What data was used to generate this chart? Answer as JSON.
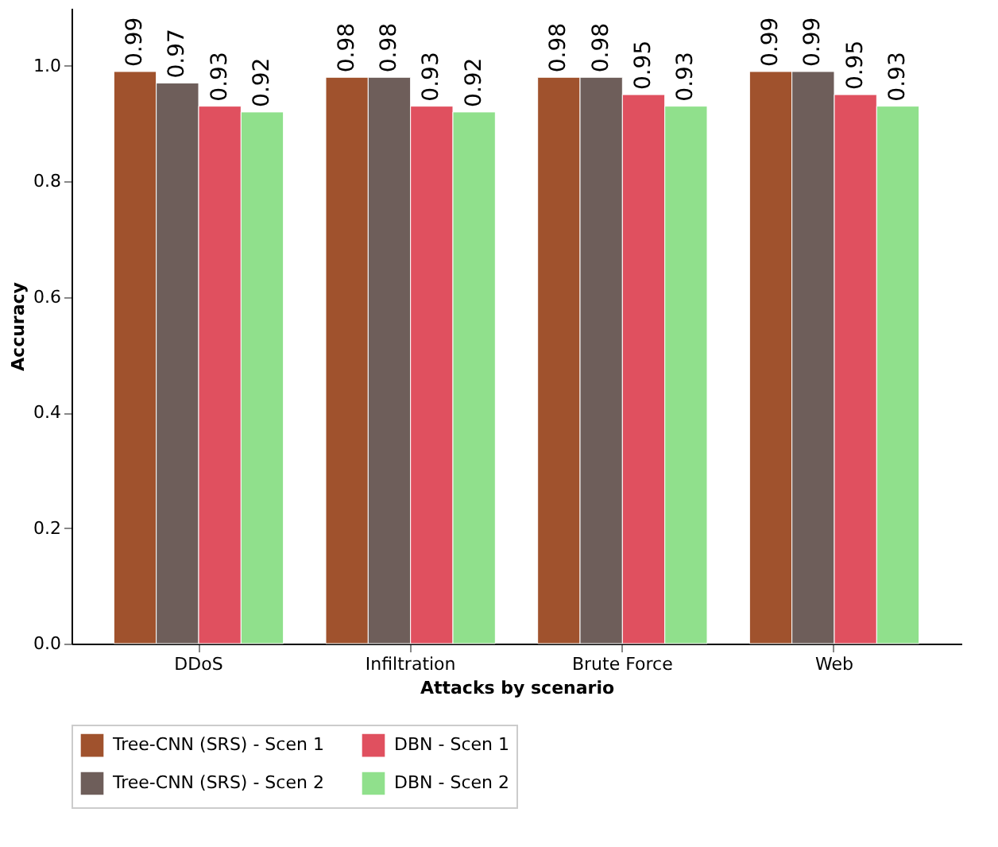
{
  "chart_data": {
    "type": "bar",
    "xlabel": "Attacks by scenario",
    "ylabel": "Accuracy",
    "categories": [
      "DDoS",
      "Infiltration",
      "Brute Force",
      "Web"
    ],
    "series": [
      {
        "name": "Tree-CNN (SRS) - Scen 1",
        "color": "#a0522d",
        "values": [
          0.99,
          0.98,
          0.98,
          0.99
        ]
      },
      {
        "name": "Tree-CNN (SRS) - Scen 2",
        "color": "#6e5e5a",
        "values": [
          0.97,
          0.98,
          0.98,
          0.99
        ]
      },
      {
        "name": "DBN - Scen 1",
        "color": "#e0505f",
        "values": [
          0.93,
          0.93,
          0.95,
          0.95
        ]
      },
      {
        "name": "DBN - Scen 2",
        "color": "#90e08c",
        "values": [
          0.92,
          0.92,
          0.93,
          0.93
        ]
      }
    ],
    "ylim": [
      0,
      1.1
    ],
    "yticks": [
      {
        "value": 0,
        "label": "0.0"
      },
      0.2,
      0.4,
      0.6,
      0.8,
      {
        "value": 1,
        "label": "1.0"
      }
    ],
    "grid": false,
    "legend": "bottom",
    "data_labels": true
  }
}
